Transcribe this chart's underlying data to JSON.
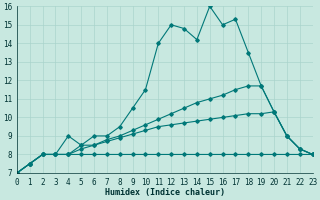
{
  "xlabel": "Humidex (Indice chaleur)",
  "xlim": [
    0,
    23
  ],
  "ylim": [
    7,
    16
  ],
  "yticks": [
    7,
    8,
    9,
    10,
    11,
    12,
    13,
    14,
    15,
    16
  ],
  "xticks": [
    0,
    1,
    2,
    3,
    4,
    5,
    6,
    7,
    8,
    9,
    10,
    11,
    12,
    13,
    14,
    15,
    16,
    17,
    18,
    19,
    20,
    21,
    22,
    23
  ],
  "bg_color": "#c8e8e0",
  "line_color": "#007878",
  "grid_color": "#aad4cc",
  "lines": [
    {
      "x": [
        0,
        1,
        2,
        3,
        4,
        5,
        6,
        7,
        8,
        9,
        10,
        11,
        12,
        13,
        14,
        15,
        16,
        17,
        18,
        19,
        20,
        21,
        22,
        23
      ],
      "y": [
        7.0,
        7.5,
        8.0,
        8.0,
        9.0,
        8.5,
        9.0,
        9.0,
        9.5,
        10.5,
        11.5,
        14.0,
        15.0,
        14.8,
        14.2,
        16.0,
        15.0,
        15.3,
        13.5,
        11.7,
        10.3,
        9.0,
        8.3,
        8.0
      ]
    },
    {
      "x": [
        0,
        1,
        2,
        3,
        4,
        5,
        6,
        7,
        8,
        9,
        10,
        11,
        12,
        13,
        14,
        15,
        16,
        17,
        18,
        19,
        20,
        21,
        22,
        23
      ],
      "y": [
        7.0,
        7.5,
        8.0,
        8.0,
        8.0,
        8.5,
        8.5,
        8.8,
        9.0,
        9.3,
        9.6,
        9.9,
        10.2,
        10.5,
        10.8,
        11.0,
        11.2,
        11.5,
        11.7,
        11.7,
        10.3,
        9.0,
        8.3,
        8.0
      ]
    },
    {
      "x": [
        0,
        1,
        2,
        3,
        4,
        5,
        6,
        7,
        8,
        9,
        10,
        11,
        12,
        13,
        14,
        15,
        16,
        17,
        18,
        19,
        20,
        21,
        22,
        23
      ],
      "y": [
        7.0,
        7.5,
        8.0,
        8.0,
        8.0,
        8.3,
        8.5,
        8.7,
        8.9,
        9.1,
        9.3,
        9.5,
        9.6,
        9.7,
        9.8,
        9.9,
        10.0,
        10.1,
        10.2,
        10.2,
        10.3,
        9.0,
        8.3,
        8.0
      ]
    },
    {
      "x": [
        0,
        1,
        2,
        3,
        4,
        5,
        6,
        7,
        8,
        9,
        10,
        11,
        12,
        13,
        14,
        15,
        16,
        17,
        18,
        19,
        20,
        21,
        22,
        23
      ],
      "y": [
        7.0,
        7.5,
        8.0,
        8.0,
        8.0,
        8.0,
        8.0,
        8.0,
        8.0,
        8.0,
        8.0,
        8.0,
        8.0,
        8.0,
        8.0,
        8.0,
        8.0,
        8.0,
        8.0,
        8.0,
        8.0,
        8.0,
        8.0,
        8.0
      ]
    }
  ]
}
